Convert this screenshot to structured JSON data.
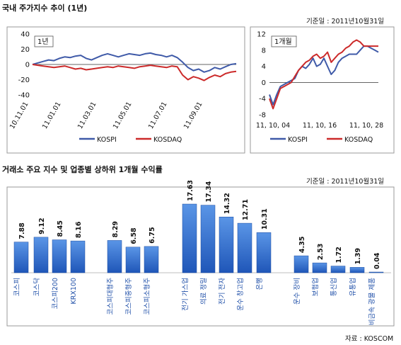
{
  "top_title": "국내 주가지수 추이 (1년)",
  "top_base_date": "기준일 : 2011년10월31일",
  "bottom_title": "거래소 주요 지수 및 업종별 상하위 1개월 수익률",
  "bottom_base_date": "기준일 : 2011년10월31일",
  "source": "자료 : KOSCOM",
  "colors": {
    "kospi": "#3f5aa8",
    "kosdaq": "#cc2a2a",
    "bar_top": "#5a95e6",
    "bar_bottom": "#1f56b8",
    "frame": "#9a9a9a"
  },
  "chart_data": [
    {
      "type": "line",
      "tag": "1년",
      "x_ticks": [
        "10.11.01",
        "11.01.01",
        "11.03.01",
        "11.05.01",
        "11.07.01",
        "11.09.01"
      ],
      "ylim": [
        -40,
        40
      ],
      "y_ticks": [
        40,
        20,
        0,
        -20,
        -40
      ],
      "legend_position": "bottom",
      "series": [
        {
          "name": "KOSPI",
          "values": [
            0,
            2,
            4,
            6,
            5,
            8,
            10,
            9,
            11,
            12,
            8,
            6,
            9,
            12,
            14,
            12,
            10,
            12,
            14,
            13,
            12,
            14,
            15,
            13,
            12,
            10,
            12,
            9,
            3,
            -4,
            -8,
            -6,
            -10,
            -8,
            -4,
            -6,
            -3,
            0,
            1
          ]
        },
        {
          "name": "KOSDAQ",
          "values": [
            0,
            -1,
            -2,
            -3,
            -4,
            -3,
            -2,
            -4,
            -6,
            -5,
            -7,
            -6,
            -5,
            -4,
            -3,
            -4,
            -2,
            -3,
            -4,
            -5,
            -3,
            -2,
            -1,
            -2,
            -3,
            -4,
            -2,
            -3,
            -14,
            -20,
            -16,
            -18,
            -21,
            -17,
            -14,
            -16,
            -12,
            -10,
            -9
          ]
        }
      ]
    },
    {
      "type": "line",
      "tag": "1개월",
      "x_ticks": [
        "11, 10, 04",
        "11, 10, 16",
        "11, 10, 28"
      ],
      "ylim": [
        -8,
        12
      ],
      "y_ticks": [
        12,
        8,
        4,
        0,
        -4,
        -8
      ],
      "legend_position": "bottom",
      "series": [
        {
          "name": "KOSPI",
          "values": [
            -3,
            -5.5,
            -3,
            -1,
            -0.5,
            0,
            0.5,
            1,
            3,
            4,
            3.5,
            4.5,
            6,
            4,
            4.5,
            6,
            4,
            2,
            3,
            5,
            6,
            6.5,
            7,
            7,
            7,
            8,
            9,
            9,
            8.5,
            8,
            7.5
          ]
        },
        {
          "name": "KOSDAQ",
          "values": [
            -4,
            -6.5,
            -4,
            -1.5,
            -1,
            -0.5,
            0,
            1.5,
            3,
            4,
            5,
            5.5,
            6.5,
            7,
            6,
            6.5,
            7.5,
            5,
            6,
            7,
            7.5,
            8.5,
            9,
            10,
            10.5,
            10,
            9,
            9,
            9,
            9,
            9
          ]
        }
      ]
    },
    {
      "type": "bar",
      "categories": [
        "코스피",
        "코스닥",
        "코스피200",
        "KRX100",
        "코스피대형주",
        "코스피중형주",
        "코스피소형주",
        "전기 가스업",
        "의료 정밀",
        "전기 전자",
        "운수 창고업",
        "은행",
        "운수 장비",
        "보험업",
        "통신업",
        "유통업",
        "비금속 광물 제품"
      ],
      "values": [
        7.88,
        9.12,
        8.45,
        8.16,
        8.29,
        6.58,
        6.75,
        17.63,
        17.34,
        14.32,
        12.71,
        10.31,
        4.35,
        2.53,
        1.72,
        1.39,
        0.04
      ],
      "value_labels": [
        "7.88",
        "9.12",
        "8.45",
        "8.16",
        "8.29",
        "6.58",
        "6.75",
        "17.63",
        "17.34",
        "14.32",
        "12.71",
        "10.31",
        "4.35",
        "2.53",
        "1.72",
        "1.39",
        "0.04"
      ],
      "ylim": [
        0,
        20
      ]
    }
  ]
}
